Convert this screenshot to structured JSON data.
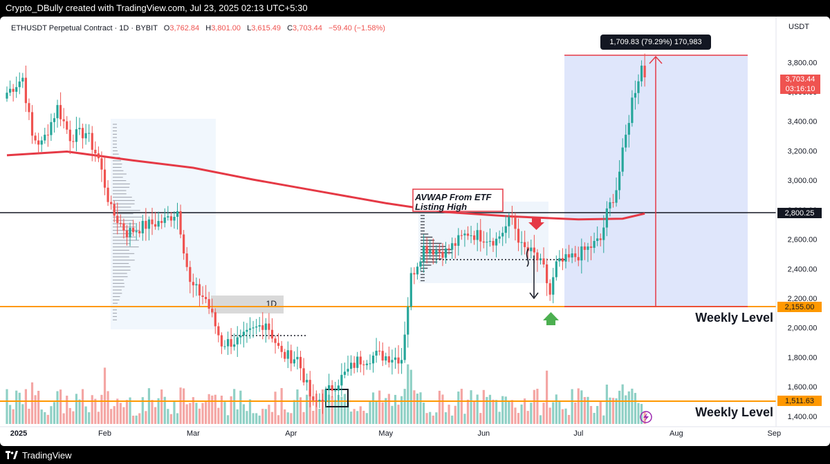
{
  "header": {
    "attribution": "Crypto_DBully created with TradingView.com, Jul 23, 2025 02:13 UTC+5:30"
  },
  "legend": {
    "symbol": "ETHUSDT Perpetual Contract · 1D · BYBIT",
    "o_label": "O",
    "o": "3,762.84",
    "h_label": "H",
    "h": "3,801.00",
    "l_label": "L",
    "l": "3,615.49",
    "c_label": "C",
    "c": "3,703.44",
    "change": "−59.40 (−1.58%)"
  },
  "footer": {
    "brand": "TradingView"
  },
  "colors": {
    "up": "#26a69a",
    "down": "#ef5350",
    "orange": "#ff9800",
    "avwap": "#e53945",
    "range_fill": "#dfe6fb"
  },
  "chart_data": {
    "type": "candlestick",
    "currency_label": "USDT",
    "y_ticks": [
      "1,400.00",
      "1,600.00",
      "1,800.00",
      "2,000.00",
      "2,200.00",
      "2,400.00",
      "2,600.00",
      "2,800.00",
      "3,000.00",
      "3,200.00",
      "3,400.00",
      "3,600.00",
      "3,800.00"
    ],
    "y_tick_values": [
      1400,
      1600,
      1800,
      2000,
      2200,
      2400,
      2600,
      2800,
      3000,
      3200,
      3400,
      3600,
      3800
    ],
    "y_range": [
      1340,
      4080
    ],
    "x_labels": [
      "2025",
      "Feb",
      "Mar",
      "Apr",
      "May",
      "Jun",
      "Jul",
      "Aug",
      "Sep"
    ],
    "x_label_days": [
      0,
      31,
      59,
      90,
      120,
      151,
      181,
      212,
      243
    ],
    "last_price": {
      "price": "3,703.44",
      "countdown": "03:16:10",
      "value": 3703.44
    },
    "levels": [
      {
        "label": "2,800.25",
        "value": 2800.25,
        "color": "#131722"
      },
      {
        "label": "2,155.00",
        "value": 2155.0,
        "color": "#ff9800",
        "annotation": "Weekly Level"
      },
      {
        "label": "1,511.63",
        "value": 1511.63,
        "color": "#ff9800",
        "annotation": "Weekly Level"
      }
    ],
    "measure_tooltip": "1,709.83 (79.29%) 170,983",
    "avwap_label_line1": "AVWAP From ETF",
    "avwap_label_line2": "Listing High",
    "timeframe_label": "1D",
    "anchor_points": [
      {
        "date": "2025-01-01",
        "price": 3600
      },
      {
        "date": "2025-01-06",
        "price": 3700
      },
      {
        "date": "2025-01-09",
        "price": 3300
      },
      {
        "date": "2025-01-12",
        "price": 3250
      },
      {
        "date": "2025-01-17",
        "price": 3500
      },
      {
        "date": "2025-01-21",
        "price": 3300
      },
      {
        "date": "2025-01-26",
        "price": 3330
      },
      {
        "date": "2025-01-30",
        "price": 3150
      },
      {
        "date": "2025-02-03",
        "price": 2800
      },
      {
        "date": "2025-02-08",
        "price": 2650
      },
      {
        "date": "2025-02-14",
        "price": 2700
      },
      {
        "date": "2025-02-20",
        "price": 2730
      },
      {
        "date": "2025-02-24",
        "price": 2800
      },
      {
        "date": "2025-02-28",
        "price": 2300
      },
      {
        "date": "2025-03-05",
        "price": 2200
      },
      {
        "date": "2025-03-10",
        "price": 1900
      },
      {
        "date": "2025-03-16",
        "price": 1920
      },
      {
        "date": "2025-03-24",
        "price": 2050
      },
      {
        "date": "2025-03-29",
        "price": 1820
      },
      {
        "date": "2025-04-03",
        "price": 1800
      },
      {
        "date": "2025-04-08",
        "price": 1480
      },
      {
        "date": "2025-04-14",
        "price": 1600
      },
      {
        "date": "2025-04-22",
        "price": 1780
      },
      {
        "date": "2025-04-28",
        "price": 1820
      },
      {
        "date": "2025-05-06",
        "price": 1800
      },
      {
        "date": "2025-05-09",
        "price": 2350
      },
      {
        "date": "2025-05-13",
        "price": 2550
      },
      {
        "date": "2025-05-20",
        "price": 2520
      },
      {
        "date": "2025-05-27",
        "price": 2650
      },
      {
        "date": "2025-06-05",
        "price": 2600
      },
      {
        "date": "2025-06-10",
        "price": 2750
      },
      {
        "date": "2025-06-13",
        "price": 2550
      },
      {
        "date": "2025-06-17",
        "price": 2500
      },
      {
        "date": "2025-06-20",
        "price": 2400
      },
      {
        "date": "2025-06-22",
        "price": 2230
      },
      {
        "date": "2025-06-24",
        "price": 2430
      },
      {
        "date": "2025-07-01",
        "price": 2500
      },
      {
        "date": "2025-07-08",
        "price": 2600
      },
      {
        "date": "2025-07-10",
        "price": 2780
      },
      {
        "date": "2025-07-13",
        "price": 2950
      },
      {
        "date": "2025-07-16",
        "price": 3300
      },
      {
        "date": "2025-07-18",
        "price": 3550
      },
      {
        "date": "2025-07-21",
        "price": 3780
      },
      {
        "date": "2025-07-22",
        "price": 3703.44
      }
    ],
    "avwap_points": [
      {
        "date": "2025-01-01",
        "price": 3175
      },
      {
        "date": "2025-01-20",
        "price": 3200
      },
      {
        "date": "2025-02-10",
        "price": 3140
      },
      {
        "date": "2025-03-01",
        "price": 3090
      },
      {
        "date": "2025-03-20",
        "price": 3010
      },
      {
        "date": "2025-04-10",
        "price": 2930
      },
      {
        "date": "2025-05-01",
        "price": 2850
      },
      {
        "date": "2025-05-20",
        "price": 2790
      },
      {
        "date": "2025-06-10",
        "price": 2760
      },
      {
        "date": "2025-07-01",
        "price": 2740
      },
      {
        "date": "2025-07-15",
        "price": 2745
      },
      {
        "date": "2025-07-22",
        "price": 2780
      }
    ]
  }
}
